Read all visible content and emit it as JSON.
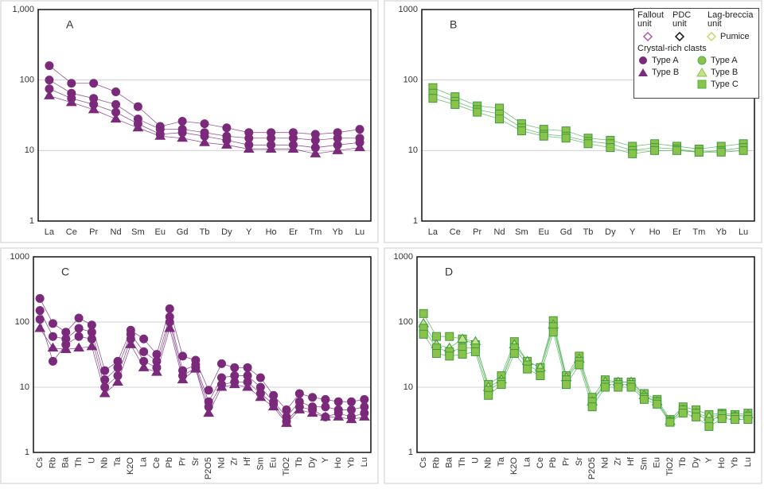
{
  "chart_data": [
    {
      "type": "line",
      "title": "A",
      "log_scale": true,
      "grid": true,
      "label_rotation": 0,
      "categories": [
        "La",
        "Ce",
        "Pr",
        "Nd",
        "Sm",
        "Eu",
        "Gd",
        "Tb",
        "Dy",
        "Y",
        "Ho",
        "Er",
        "Tm",
        "Yb",
        "Lu"
      ],
      "ylim": [
        1,
        1000
      ],
      "yticks": [
        1,
        10,
        100,
        {
          "value": 1000,
          "label": "1,000"
        }
      ],
      "series": [
        {
          "color": "#7b2a7b",
          "marker": "circle",
          "values": [
            160,
            90,
            90,
            68,
            42,
            22,
            26,
            24,
            21,
            18,
            18,
            18,
            17,
            18,
            20
          ]
        },
        {
          "color": "#7b2a7b",
          "marker": "circle",
          "values": [
            100,
            65,
            55,
            45,
            28,
            20,
            20,
            18,
            16,
            15,
            15,
            15,
            14,
            15,
            15
          ]
        },
        {
          "color": "#7b2a7b",
          "marker": "circle",
          "values": [
            75,
            55,
            45,
            35,
            24,
            17,
            18,
            16,
            14,
            12,
            12,
            12,
            11,
            12,
            13
          ]
        },
        {
          "color": "#7b2a7b",
          "marker": "triangle",
          "values": [
            60,
            48,
            38,
            28,
            21,
            16,
            15,
            13,
            12,
            10.5,
            10.5,
            10.5,
            9,
            10,
            11
          ]
        }
      ]
    },
    {
      "type": "line",
      "title": "B",
      "log_scale": true,
      "grid": true,
      "label_rotation": 0,
      "categories": [
        "La",
        "Ce",
        "Pr",
        "Nd",
        "Sm",
        "Eu",
        "Gd",
        "Tb",
        "Dy",
        "Y",
        "Ho",
        "Er",
        "Tm",
        "Yb",
        "Lu"
      ],
      "ylim": [
        1,
        1000
      ],
      "yticks": [
        1,
        10,
        100,
        1000
      ],
      "series": [
        {
          "color": "#4caf50",
          "marker": "square",
          "values": [
            78,
            58,
            43,
            40,
            24,
            20,
            19,
            15,
            14,
            11.5,
            12.5,
            11.5,
            10.5,
            11.5,
            12.5
          ]
        },
        {
          "color": "#4caf50",
          "marker": "square",
          "values": [
            65,
            50,
            38,
            33,
            21,
            17,
            16,
            13.5,
            12.5,
            10,
            11,
            10.5,
            9.5,
            10,
            11
          ]
        },
        {
          "color": "#4caf50",
          "marker": "square",
          "values": [
            55,
            45,
            35,
            28,
            19,
            16,
            15,
            12.5,
            11,
            9,
            10,
            10,
            9.5,
            9.5,
            10
          ]
        }
      ],
      "legend": {
        "headers": [
          "Fallout unit",
          "PDC unit",
          "Lag-breccia unit"
        ],
        "pumice": "Pumice",
        "group": "Crystal-rich clasts",
        "left": [
          "Type A",
          "Type B"
        ],
        "right": [
          "Type A",
          "Type B",
          "Type C"
        ]
      }
    },
    {
      "type": "line",
      "title": "C",
      "log_scale": true,
      "grid": true,
      "label_rotation": 90,
      "categories": [
        "Cs",
        "Rb",
        "Ba",
        "Th",
        "U",
        "Nb",
        "Ta",
        "K2O",
        "La",
        "Ce",
        "Pb",
        "Pr",
        "Sr",
        "P2O5",
        "Nd",
        "Zr",
        "Hf",
        "Sm",
        "Eu",
        "TiO2",
        "Tb",
        "Dy",
        "Y",
        "Ho",
        "Yb",
        "Lu"
      ],
      "ylim": [
        1,
        1000
      ],
      "yticks": [
        1,
        10,
        100,
        1000
      ],
      "series": [
        {
          "color": "#7b2a7b",
          "marker": "circle",
          "values": [
            230,
            95,
            70,
            115,
            90,
            18,
            25,
            75,
            55,
            32,
            160,
            30,
            26,
            9,
            23,
            20,
            20,
            14,
            7.5,
            4.5,
            8,
            7,
            6.5,
            6,
            6,
            6.5
          ]
        },
        {
          "color": "#7b2a7b",
          "marker": "circle",
          "values": [
            150,
            60,
            55,
            80,
            70,
            13,
            20,
            65,
            35,
            25,
            120,
            18,
            22,
            6,
            14,
            15,
            15,
            10,
            6,
            3.5,
            6,
            5,
            5,
            4.5,
            4.5,
            5
          ]
        },
        {
          "color": "#7b2a7b",
          "marker": "circle",
          "values": [
            110,
            25,
            45,
            60,
            55,
            10,
            15,
            55,
            25,
            20,
            100,
            15,
            20,
            5,
            11,
            12,
            12,
            8,
            5.5,
            3,
            5,
            4.5,
            3.5,
            4,
            3.5,
            4
          ]
        },
        {
          "color": "#7b2a7b",
          "marker": "triangle",
          "values": [
            80,
            40,
            38,
            40,
            42,
            8,
            12,
            45,
            20,
            17,
            80,
            13,
            19,
            4,
            10,
            11,
            10,
            7,
            5,
            2.8,
            4.5,
            4,
            3.5,
            3.5,
            3.2,
            3.5
          ]
        }
      ]
    },
    {
      "type": "line",
      "title": "D",
      "log_scale": true,
      "grid": true,
      "label_rotation": 90,
      "categories": [
        "Cs",
        "Rb",
        "Ba",
        "Th",
        "U",
        "Nb",
        "Ta",
        "K2O",
        "La",
        "Ce",
        "Pb",
        "Pr",
        "Sr",
        "P2O5",
        "Nd",
        "Zr",
        "Hf",
        "Sm",
        "Eu",
        "TiO2",
        "Tb",
        "Dy",
        "Y",
        "Ho",
        "Yb",
        "Lu"
      ],
      "ylim": [
        1,
        1000
      ],
      "yticks": [
        1,
        10,
        100,
        1000
      ],
      "series": [
        {
          "color": "#4caf50",
          "marker": "square",
          "values": [
            135,
            60,
            60,
            55,
            45,
            11,
            15,
            50,
            25,
            20,
            105,
            15,
            30,
            7,
            13,
            12,
            12,
            8,
            6.5,
            3.2,
            5,
            4.5,
            3.8,
            4,
            3.8,
            4
          ]
        },
        {
          "color": "#4caf50",
          "marker": "triangle",
          "values": [
            95,
            45,
            40,
            55,
            50,
            10,
            13,
            45,
            25,
            20,
            90,
            14,
            27,
            6,
            12,
            12,
            12,
            7.5,
            6,
            3,
            4.5,
            4,
            3.5,
            3.8,
            3.6,
            3.8
          ]
        },
        {
          "color": "#4caf50",
          "marker": "square",
          "values": [
            80,
            40,
            35,
            40,
            40,
            9,
            12,
            40,
            22,
            17,
            85,
            13,
            25,
            6,
            11,
            11,
            11,
            7,
            6,
            3,
            4.5,
            4,
            3,
            3.8,
            3.5,
            3.6
          ]
        },
        {
          "color": "#4caf50",
          "marker": "square",
          "values": [
            65,
            33,
            30,
            32,
            35,
            7.5,
            11,
            33,
            19,
            15,
            70,
            11,
            22,
            5,
            10,
            10,
            10,
            6.5,
            5.5,
            2.9,
            4,
            3.5,
            2.5,
            3.3,
            3.2,
            3.2
          ]
        }
      ]
    }
  ]
}
